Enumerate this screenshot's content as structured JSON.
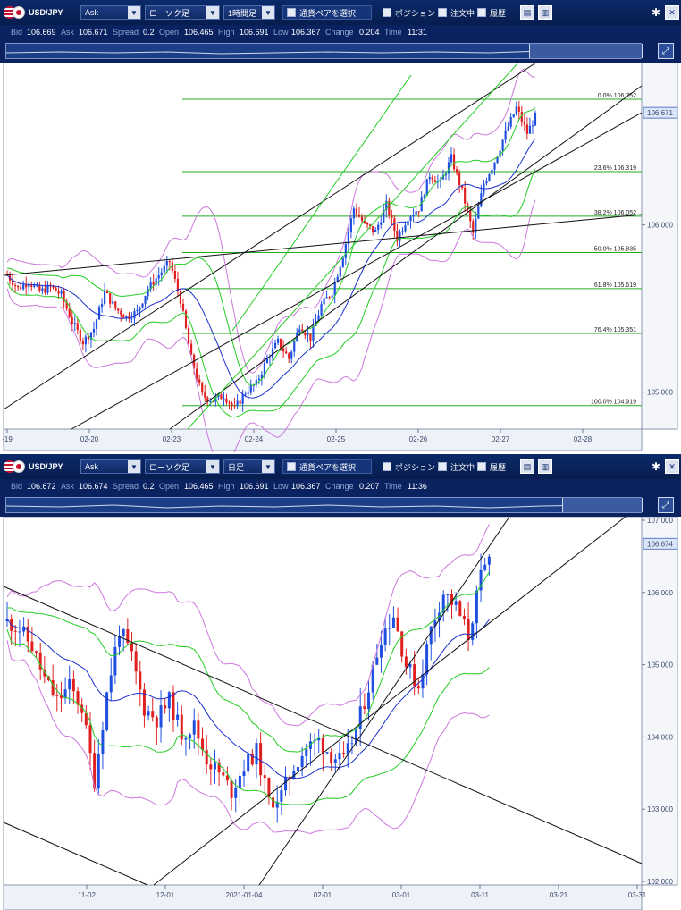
{
  "panels": [
    {
      "symbol": "USD/JPY",
      "price_type": "Ask",
      "chart_style": "ローソク足",
      "timeframe": "1時間足",
      "pair_select": "通貨ペアを選択",
      "toggles": [
        "ポジション",
        "注文中",
        "履歴"
      ],
      "quote": {
        "labels": [
          "Bid",
          "Ask",
          "Spread",
          "Open",
          "High",
          "Low",
          "Change",
          "Time"
        ],
        "values": [
          "106.669",
          "106.671",
          "0.2",
          "106.465",
          "106.691",
          "106.367",
          "0.204",
          "11:31"
        ]
      },
      "icons": [
        "chart-icon",
        "layout-icon",
        "gear-icon",
        "close-icon",
        "expand-icon"
      ],
      "current_price": "106.671",
      "colors": {
        "candle_up": "#1f4fe0",
        "candle_down": "#e02020",
        "bollinger_outer": "#cc77dd",
        "bollinger_inner": "#22cc22",
        "moving_average": "#1a2fcc",
        "trendline": "#111111",
        "fibonacci": "#22aa22"
      }
    },
    {
      "symbol": "USD/JPY",
      "price_type": "Ask",
      "chart_style": "ローソク足",
      "timeframe": "日足",
      "pair_select": "通貨ペアを選択",
      "toggles": [
        "ポジション",
        "注文中",
        "履歴"
      ],
      "quote": {
        "labels": [
          "Bid",
          "Ask",
          "Spread",
          "Open",
          "High",
          "Low",
          "Change",
          "Time"
        ],
        "values": [
          "106.672",
          "106.674",
          "0.2",
          "106.465",
          "106.691",
          "106.367",
          "0.207",
          "11:36"
        ]
      },
      "icons": [
        "chart-icon",
        "layout-icon",
        "gear-icon",
        "close-icon",
        "expand-icon"
      ],
      "current_price": "106.674",
      "colors": {
        "candle_up": "#1f4fe0",
        "candle_down": "#e02020",
        "bollinger_outer": "#cc77dd",
        "bollinger_inner": "#22cc22",
        "moving_average": "#1a2fcc",
        "trendline": "#111111"
      }
    }
  ],
  "chart_data": [
    {
      "type": "candlestick",
      "title": "USD/JPY 1時間足",
      "x_ticks": [
        "-19",
        "02-20",
        "02-23",
        "02-24",
        "02-25",
        "02-26",
        "02-27",
        "02-28"
      ],
      "y_ticks": [
        "106.000",
        "105.000"
      ],
      "ylim": [
        104.8,
        106.95
      ],
      "fibonacci": [
        {
          "label": "0.0%",
          "value": 106.752
        },
        {
          "label": "23.6%",
          "value": 106.319
        },
        {
          "label": "38.2%",
          "value": 106.052
        },
        {
          "label": "50.0%",
          "value": 105.835
        },
        {
          "label": "61.8%",
          "value": 105.619
        },
        {
          "label": "76.4%",
          "value": 105.351
        },
        {
          "label": "100.0%",
          "value": 104.919
        }
      ],
      "close_path": [
        105.7,
        105.62,
        105.66,
        105.6,
        105.63,
        105.58,
        105.42,
        105.3,
        105.38,
        105.6,
        105.5,
        105.45,
        105.48,
        105.62,
        105.7,
        105.78,
        105.55,
        105.2,
        104.98,
        104.95,
        104.98,
        104.9,
        105.0,
        105.05,
        105.2,
        105.3,
        105.2,
        105.4,
        105.32,
        105.52,
        105.6,
        105.82,
        106.1,
        106.0,
        105.96,
        106.12,
        105.92,
        106.05,
        106.1,
        106.3,
        106.25,
        106.4,
        106.2,
        105.95,
        106.25,
        106.38,
        106.55,
        106.7,
        106.55,
        106.68
      ]
    },
    {
      "type": "candlestick",
      "title": "USD/JPY 日足",
      "x_ticks": [
        "11-02",
        "12-01",
        "2021-01-04",
        "02-01",
        "03-01",
        "03-11",
        "03-21",
        "03-31"
      ],
      "y_ticks": [
        "107.000",
        "106.000",
        "105.000",
        "104.000",
        "103.000",
        "102.000"
      ],
      "ylim": [
        102.0,
        107.0
      ],
      "close_path": [
        105.6,
        105.5,
        105.25,
        104.8,
        104.5,
        104.7,
        104.4,
        103.4,
        104.6,
        105.5,
        105.1,
        104.4,
        104.25,
        104.5,
        104.05,
        104.15,
        103.7,
        103.5,
        103.25,
        103.6,
        103.8,
        103.1,
        103.2,
        103.6,
        103.85,
        103.95,
        103.75,
        103.65,
        104.1,
        104.7,
        105.4,
        105.7,
        105.0,
        104.7,
        105.5,
        106.0,
        105.8,
        105.4,
        106.2,
        106.6
      ]
    }
  ]
}
